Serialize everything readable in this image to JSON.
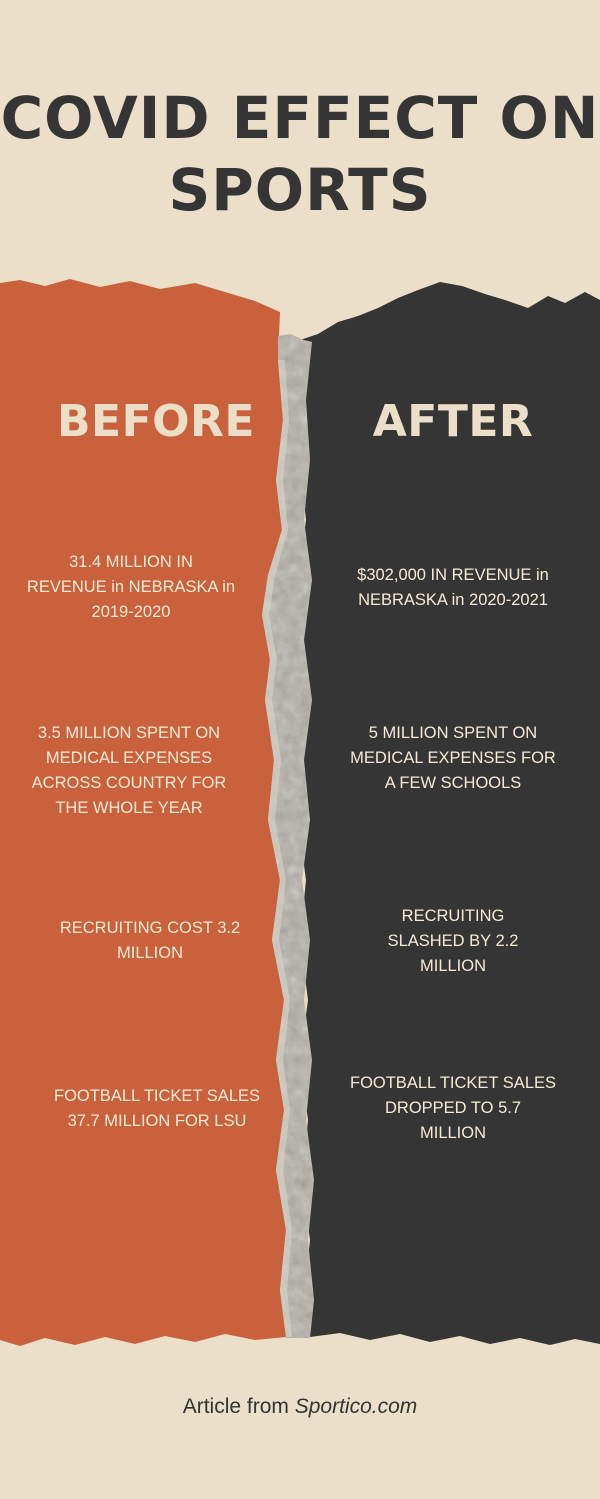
{
  "title": "COVID EFFECT ON\nSPORTS",
  "colors": {
    "background": "#ebdfca",
    "before_panel": "#c9623c",
    "after_panel": "#353535",
    "tear": "#b4b0a6"
  },
  "columns": {
    "before": {
      "heading": "BEFORE",
      "facts": [
        "31.4 MILLION IN\nREVENUE in NEBRASKA in\n2019-2020",
        "3.5 MILLION SPENT  ON\nMEDICAL EXPENSES\nACROSS COUNTRY FOR\nTHE WHOLE YEAR",
        "RECRUITING COST 3.2\nMILLION",
        "FOOTBALL TICKET SALES\n37.7 MILLION FOR LSU"
      ]
    },
    "after": {
      "heading": "AFTER",
      "facts": [
        "$302,000 IN REVENUE in\nNEBRASKA in 2020-2021",
        "5 MILLION SPENT ON\nMEDICAL EXPENSES FOR\nA FEW SCHOOLS",
        "RECRUITING\nSLASHED BY 2.2\nMILLION",
        "FOOTBALL TICKET SALES\nDROPPED TO 5.7\nMILLION"
      ]
    }
  },
  "footer": {
    "prefix": "Article from ",
    "source": "Sportico.com"
  }
}
